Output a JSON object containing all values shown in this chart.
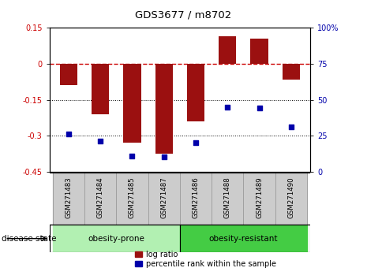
{
  "title": "GDS3677 / m8702",
  "samples": [
    "GSM271483",
    "GSM271484",
    "GSM271485",
    "GSM271487",
    "GSM271486",
    "GSM271488",
    "GSM271489",
    "GSM271490"
  ],
  "log_ratio": [
    -0.09,
    -0.21,
    -0.33,
    -0.375,
    -0.24,
    0.115,
    0.105,
    -0.065
  ],
  "percentile_rank": [
    26,
    21,
    11,
    10,
    20,
    45,
    44,
    31
  ],
  "groups": [
    {
      "label": "obesity-prone",
      "start": 0,
      "end": 4,
      "color": "#b2f0b2"
    },
    {
      "label": "obesity-resistant",
      "start": 4,
      "end": 8,
      "color": "#44cc44"
    }
  ],
  "bar_color": "#9B1010",
  "dot_color": "#0000AA",
  "ylim_left": [
    -0.45,
    0.15
  ],
  "ylim_right": [
    0,
    100
  ],
  "yticks_left": [
    -0.45,
    -0.3,
    -0.15,
    0,
    0.15
  ],
  "yticks_right": [
    0,
    25,
    50,
    75,
    100
  ],
  "ytick_labels_left": [
    "-0.45",
    "-0.3",
    "-0.15",
    "0",
    "0.15"
  ],
  "ytick_labels_right": [
    "0",
    "25",
    "50",
    "75",
    "100%"
  ],
  "disease_state_label": "disease state",
  "legend_bar_label": "log ratio",
  "legend_dot_label": "percentile rank within the sample",
  "hline_color": "#cc0000",
  "hline_style": "--",
  "grid_yticks": [
    -0.15,
    -0.3
  ],
  "bar_width": 0.55
}
